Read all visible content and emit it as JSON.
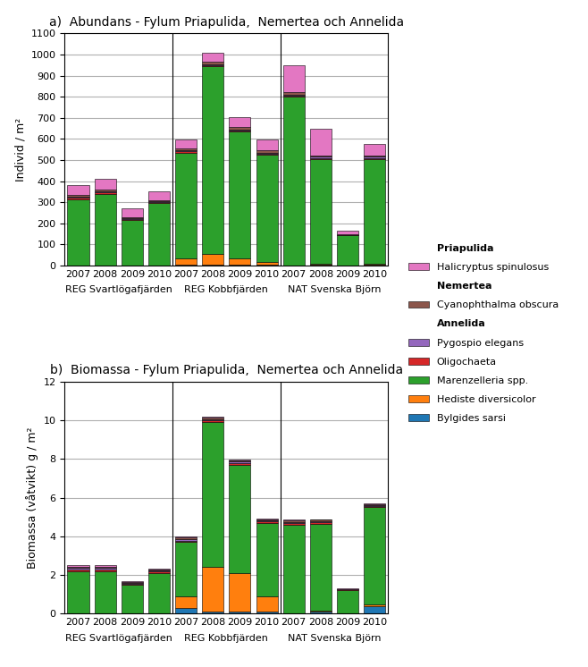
{
  "chart_data": [
    {
      "type": "bar",
      "stacked": true,
      "grid": true,
      "legend": "center left",
      "title": "a)  Abundans - Fylum Priapulida,  Nemertea och Annelida",
      "ylabel": "Individ / m²",
      "categories": [
        "2007",
        "2008",
        "2009",
        "2010",
        "2007",
        "2008",
        "2009",
        "2010",
        "2007",
        "2008",
        "2009",
        "2010"
      ],
      "groups": [
        "REG Svartlögafjärden",
        "REG Kobbfjärden",
        "NAT Svenska Björn"
      ],
      "ylim": [
        0,
        1100
      ],
      "yticks": [
        0,
        100,
        200,
        300,
        400,
        500,
        600,
        700,
        800,
        900,
        1000,
        1100
      ],
      "series": [
        {
          "name": "Bylgides sarsi",
          "phylum": "Annelida",
          "values": [
            0,
            0,
            0,
            0,
            5,
            5,
            5,
            5,
            0,
            5,
            0,
            5
          ]
        },
        {
          "name": "Hediste diversicolor",
          "phylum": "Annelida",
          "values": [
            0,
            0,
            0,
            0,
            30,
            50,
            30,
            10,
            0,
            5,
            0,
            5
          ]
        },
        {
          "name": "Marenzelleria spp.",
          "phylum": "Annelida",
          "values": [
            315,
            340,
            215,
            295,
            500,
            890,
            600,
            510,
            800,
            495,
            145,
            495
          ]
        },
        {
          "name": "Oligochaeta",
          "phylum": "Annelida",
          "values": [
            5,
            5,
            5,
            5,
            5,
            5,
            5,
            5,
            5,
            5,
            0,
            5
          ]
        },
        {
          "name": "Pygospio elegans",
          "phylum": "Annelida",
          "values": [
            5,
            5,
            5,
            5,
            5,
            5,
            5,
            5,
            5,
            5,
            0,
            5
          ]
        },
        {
          "name": "Cyanophthalma obscura",
          "phylum": "Nemertea",
          "values": [
            10,
            10,
            5,
            5,
            10,
            10,
            10,
            10,
            10,
            5,
            5,
            5
          ]
        },
        {
          "name": "Halicryptus spinulosus",
          "phylum": "Priapulida",
          "values": [
            45,
            50,
            40,
            40,
            40,
            45,
            50,
            50,
            130,
            130,
            15,
            55
          ]
        }
      ]
    },
    {
      "type": "bar",
      "stacked": true,
      "grid": true,
      "legend": "center left",
      "title": "b)  Biomassa - Fylum Priapulida,  Nemertea och Annelida",
      "ylabel": "Biomassa (våtvikt) g / m²",
      "categories": [
        "2007",
        "2008",
        "2009",
        "2010",
        "2007",
        "2008",
        "2009",
        "2010",
        "2007",
        "2008",
        "2009",
        "2010"
      ],
      "groups": [
        "REG Svartlögafjärden",
        "REG Kobbfjärden",
        "NAT Svenska Björn"
      ],
      "ylim": [
        0,
        12
      ],
      "yticks": [
        0,
        2,
        4,
        6,
        8,
        10,
        12
      ],
      "series": [
        {
          "name": "Bylgides sarsi",
          "phylum": "Annelida",
          "values": [
            0.0,
            0.0,
            0.0,
            0.0,
            0.3,
            0.1,
            0.1,
            0.1,
            0.0,
            0.1,
            0.0,
            0.4
          ]
        },
        {
          "name": "Hediste diversicolor",
          "phylum": "Annelida",
          "values": [
            0.0,
            0.0,
            0.0,
            0.0,
            0.6,
            2.3,
            2.0,
            0.8,
            0.0,
            0.05,
            0.0,
            0.1
          ]
        },
        {
          "name": "Marenzelleria spp.",
          "phylum": "Annelida",
          "values": [
            2.2,
            2.2,
            1.5,
            2.1,
            2.8,
            7.5,
            5.6,
            3.8,
            4.6,
            4.5,
            1.2,
            5.0
          ]
        },
        {
          "name": "Oligochaeta",
          "phylum": "Annelida",
          "values": [
            0.08,
            0.08,
            0.04,
            0.08,
            0.08,
            0.08,
            0.08,
            0.08,
            0.08,
            0.08,
            0.04,
            0.08
          ]
        },
        {
          "name": "Pygospio elegans",
          "phylum": "Annelida",
          "values": [
            0.08,
            0.08,
            0.04,
            0.04,
            0.08,
            0.08,
            0.08,
            0.04,
            0.04,
            0.04,
            0.0,
            0.04
          ]
        },
        {
          "name": "Cyanophthalma obscura",
          "phylum": "Nemertea",
          "values": [
            0.08,
            0.08,
            0.04,
            0.08,
            0.08,
            0.08,
            0.08,
            0.04,
            0.08,
            0.08,
            0.04,
            0.04
          ]
        },
        {
          "name": "Halicryptus spinulosus",
          "phylum": "Priapulida",
          "values": [
            0.08,
            0.08,
            0.04,
            0.04,
            0.04,
            0.04,
            0.04,
            0.04,
            0.08,
            0.04,
            0.02,
            0.02
          ]
        }
      ]
    }
  ]
}
